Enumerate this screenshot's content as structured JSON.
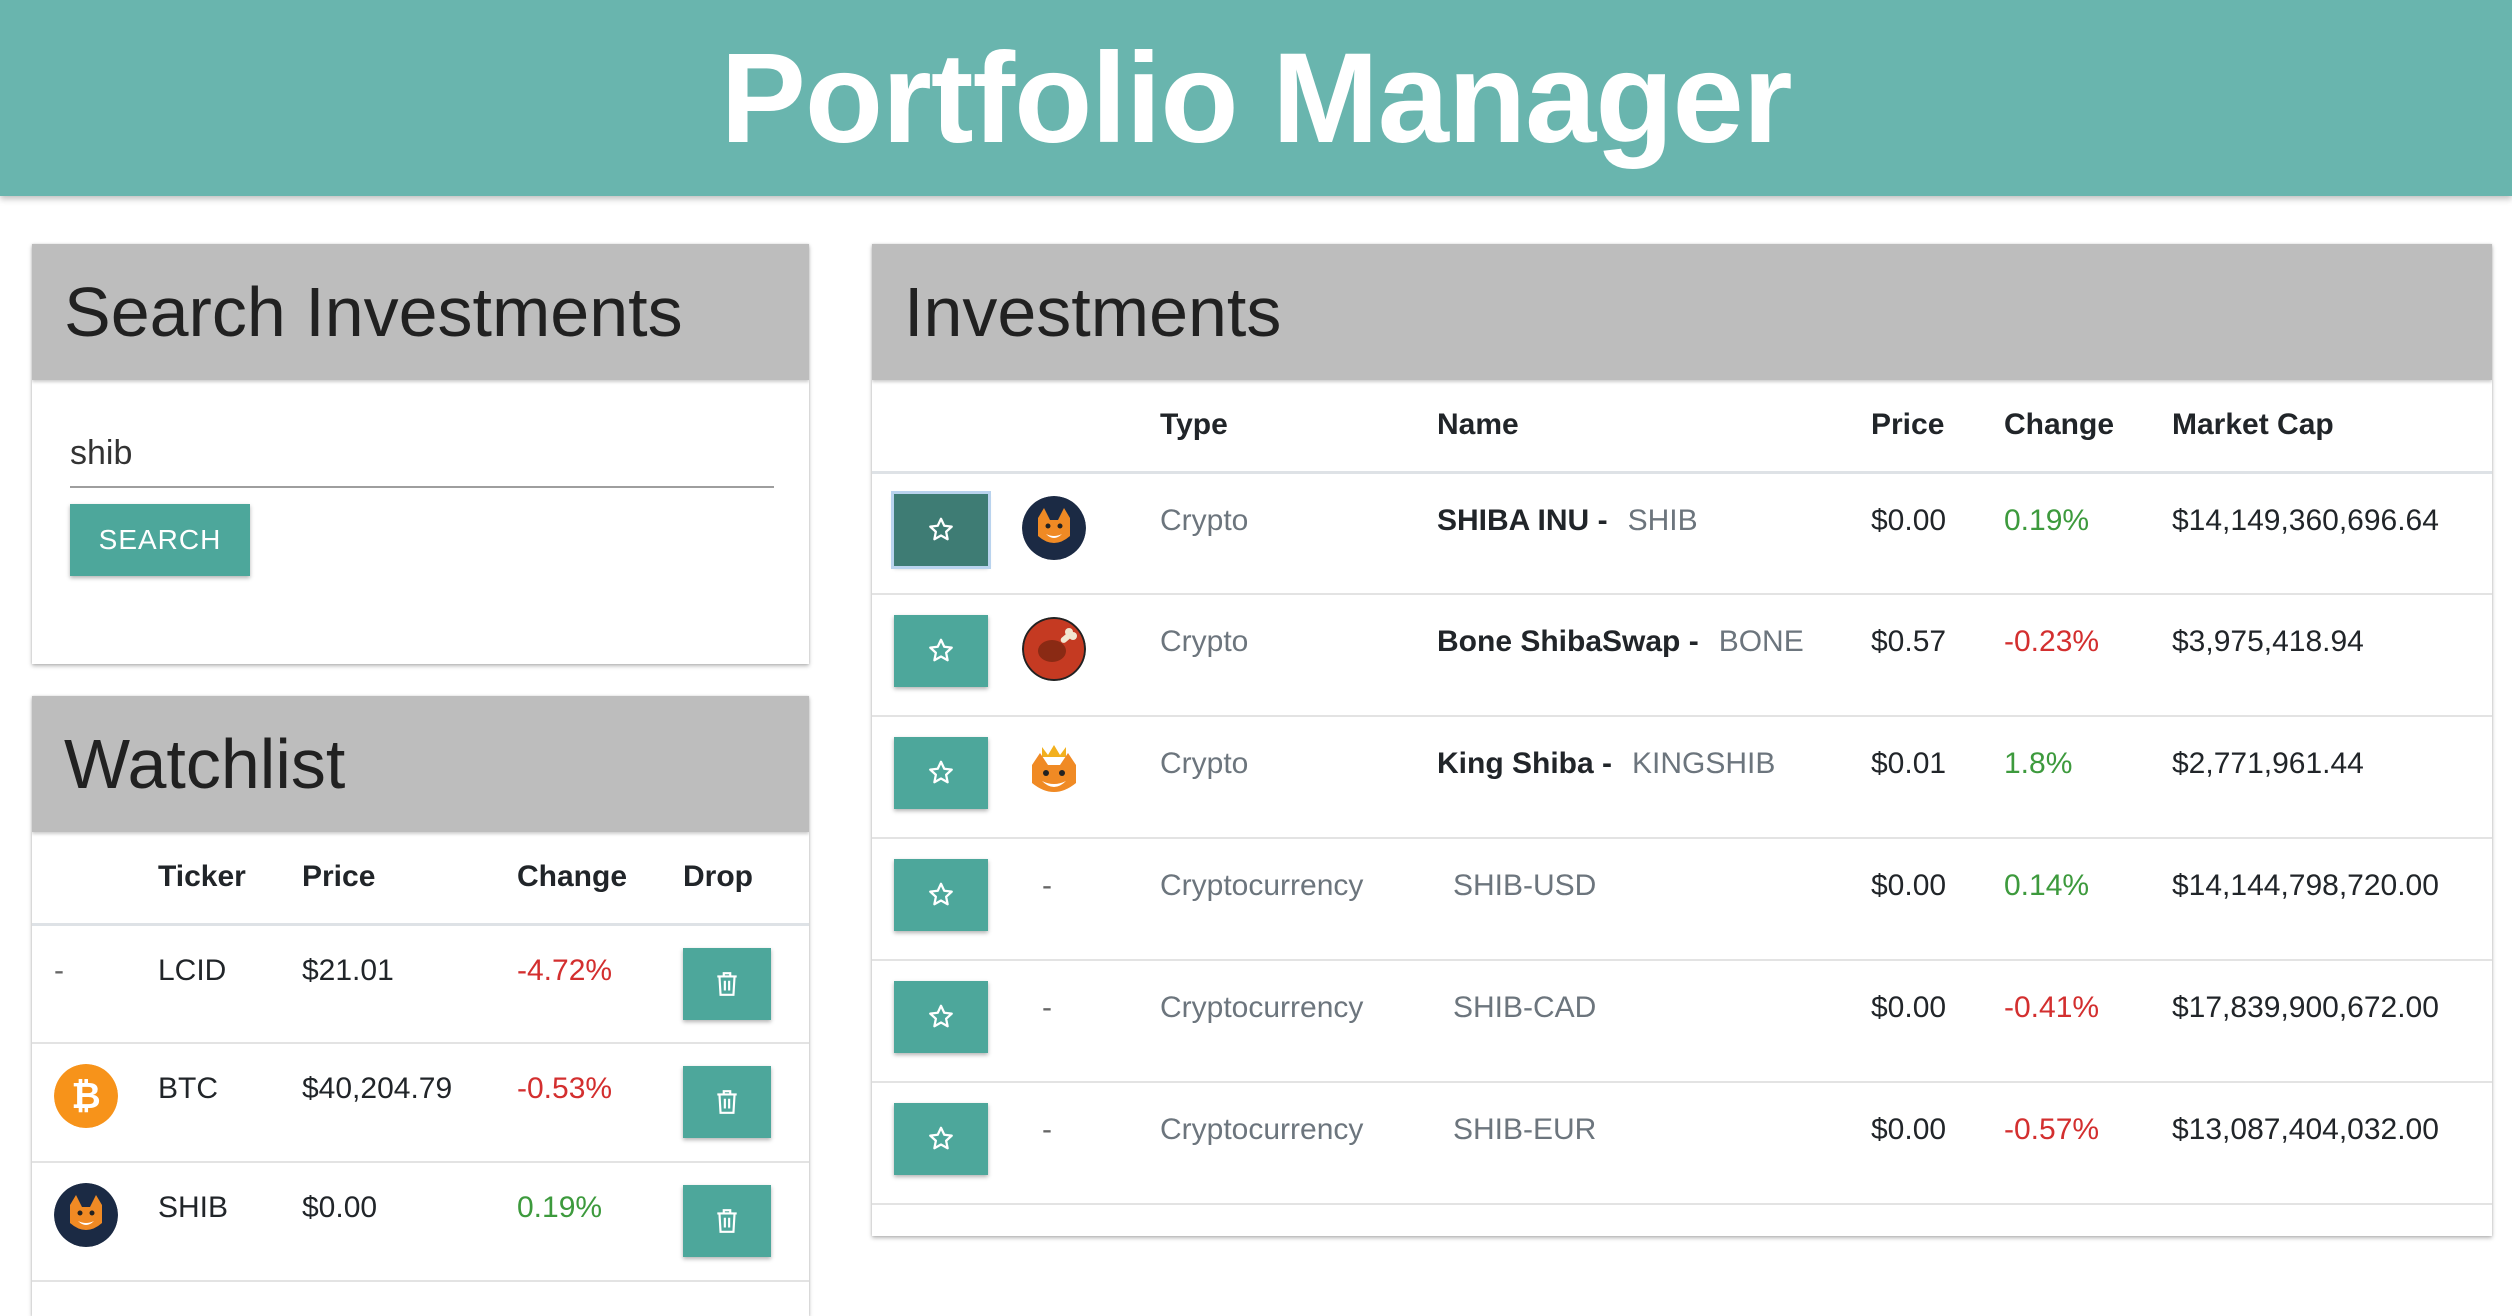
{
  "app": {
    "title": "Portfolio Manager"
  },
  "search": {
    "heading": "Search Investments",
    "query": "shib",
    "button_label": "SEARCH"
  },
  "watchlist": {
    "heading": "Watchlist",
    "columns": [
      "",
      "Ticker",
      "Price",
      "Change",
      "Drop"
    ],
    "rows": [
      {
        "icon": "dash",
        "ticker": "LCID",
        "price": "$21.01",
        "change": "-4.72%",
        "trend": "neg"
      },
      {
        "icon": "bitcoin-icon",
        "ticker": "BTC",
        "price": "$40,204.79",
        "change": "-0.53%",
        "trend": "neg"
      },
      {
        "icon": "shiba-inu-icon",
        "ticker": "SHIB",
        "price": "$0.00",
        "change": "0.19%",
        "trend": "pos"
      }
    ],
    "dash_text": "-"
  },
  "investments": {
    "heading": "Investments",
    "columns": [
      "",
      "",
      "Type",
      "Name",
      "Price",
      "Change",
      "Market Cap"
    ],
    "name_separator": " -",
    "dash_text": "-",
    "rows": [
      {
        "starred": true,
        "icon": "shiba-inu-icon",
        "type": "Crypto",
        "name": "SHIBA INU",
        "symbol": "SHIB",
        "price": "$0.00",
        "change": "0.19%",
        "trend": "pos",
        "market_cap": "$14,149,360,696.64"
      },
      {
        "starred": false,
        "icon": "bone-icon",
        "type": "Crypto",
        "name": "Bone ShibaSwap",
        "symbol": "BONE",
        "price": "$0.57",
        "change": "-0.23%",
        "trend": "neg",
        "market_cap": "$3,975,418.94"
      },
      {
        "starred": false,
        "icon": "king-shiba-icon",
        "type": "Crypto",
        "name": "King Shiba",
        "symbol": "KINGSHIB",
        "price": "$0.01",
        "change": "1.8%",
        "trend": "pos",
        "market_cap": "$2,771,961.44"
      },
      {
        "starred": false,
        "icon": "dash",
        "type": "Cryptocurrency",
        "name": "",
        "symbol": "SHIB-USD",
        "price": "$0.00",
        "change": "0.14%",
        "trend": "pos",
        "market_cap": "$14,144,798,720.00"
      },
      {
        "starred": false,
        "icon": "dash",
        "type": "Cryptocurrency",
        "name": "",
        "symbol": "SHIB-CAD",
        "price": "$0.00",
        "change": "-0.41%",
        "trend": "neg",
        "market_cap": "$17,839,900,672.00"
      },
      {
        "starred": false,
        "icon": "dash",
        "type": "Cryptocurrency",
        "name": "",
        "symbol": "SHIB-EUR",
        "price": "$0.00",
        "change": "-0.57%",
        "trend": "neg",
        "market_cap": "$13,087,404,032.00"
      }
    ]
  },
  "colors": {
    "header": "#69b5ae",
    "accent": "#4da79b",
    "accent_active": "#3e7c74",
    "positive": "#3d9a3d",
    "negative": "#d32f2f",
    "card_header": "#bdbdbd"
  }
}
